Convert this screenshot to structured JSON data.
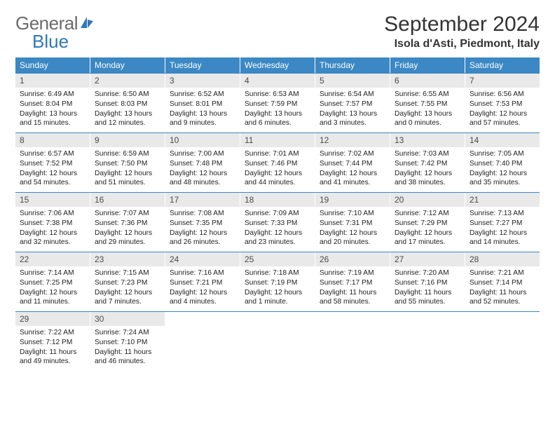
{
  "brand": {
    "part1": "General",
    "part2": "Blue"
  },
  "title": "September 2024",
  "location": "Isola d'Asti, Piedmont, Italy",
  "colors": {
    "header_bar": "#3b88c4",
    "row_divider": "#3b88c4",
    "daynum_bg": "#e9e9e9",
    "text": "#222222",
    "logo_gray": "#6b6b6b",
    "logo_blue": "#2f78b7"
  },
  "dow": [
    "Sunday",
    "Monday",
    "Tuesday",
    "Wednesday",
    "Thursday",
    "Friday",
    "Saturday"
  ],
  "weeks": [
    [
      {
        "n": "1",
        "sr": "6:49 AM",
        "ss": "8:04 PM",
        "dl": "13 hours and 15 minutes."
      },
      {
        "n": "2",
        "sr": "6:50 AM",
        "ss": "8:03 PM",
        "dl": "13 hours and 12 minutes."
      },
      {
        "n": "3",
        "sr": "6:52 AM",
        "ss": "8:01 PM",
        "dl": "13 hours and 9 minutes."
      },
      {
        "n": "4",
        "sr": "6:53 AM",
        "ss": "7:59 PM",
        "dl": "13 hours and 6 minutes."
      },
      {
        "n": "5",
        "sr": "6:54 AM",
        "ss": "7:57 PM",
        "dl": "13 hours and 3 minutes."
      },
      {
        "n": "6",
        "sr": "6:55 AM",
        "ss": "7:55 PM",
        "dl": "13 hours and 0 minutes."
      },
      {
        "n": "7",
        "sr": "6:56 AM",
        "ss": "7:53 PM",
        "dl": "12 hours and 57 minutes."
      }
    ],
    [
      {
        "n": "8",
        "sr": "6:57 AM",
        "ss": "7:52 PM",
        "dl": "12 hours and 54 minutes."
      },
      {
        "n": "9",
        "sr": "6:59 AM",
        "ss": "7:50 PM",
        "dl": "12 hours and 51 minutes."
      },
      {
        "n": "10",
        "sr": "7:00 AM",
        "ss": "7:48 PM",
        "dl": "12 hours and 48 minutes."
      },
      {
        "n": "11",
        "sr": "7:01 AM",
        "ss": "7:46 PM",
        "dl": "12 hours and 44 minutes."
      },
      {
        "n": "12",
        "sr": "7:02 AM",
        "ss": "7:44 PM",
        "dl": "12 hours and 41 minutes."
      },
      {
        "n": "13",
        "sr": "7:03 AM",
        "ss": "7:42 PM",
        "dl": "12 hours and 38 minutes."
      },
      {
        "n": "14",
        "sr": "7:05 AM",
        "ss": "7:40 PM",
        "dl": "12 hours and 35 minutes."
      }
    ],
    [
      {
        "n": "15",
        "sr": "7:06 AM",
        "ss": "7:38 PM",
        "dl": "12 hours and 32 minutes."
      },
      {
        "n": "16",
        "sr": "7:07 AM",
        "ss": "7:36 PM",
        "dl": "12 hours and 29 minutes."
      },
      {
        "n": "17",
        "sr": "7:08 AM",
        "ss": "7:35 PM",
        "dl": "12 hours and 26 minutes."
      },
      {
        "n": "18",
        "sr": "7:09 AM",
        "ss": "7:33 PM",
        "dl": "12 hours and 23 minutes."
      },
      {
        "n": "19",
        "sr": "7:10 AM",
        "ss": "7:31 PM",
        "dl": "12 hours and 20 minutes."
      },
      {
        "n": "20",
        "sr": "7:12 AM",
        "ss": "7:29 PM",
        "dl": "12 hours and 17 minutes."
      },
      {
        "n": "21",
        "sr": "7:13 AM",
        "ss": "7:27 PM",
        "dl": "12 hours and 14 minutes."
      }
    ],
    [
      {
        "n": "22",
        "sr": "7:14 AM",
        "ss": "7:25 PM",
        "dl": "12 hours and 11 minutes."
      },
      {
        "n": "23",
        "sr": "7:15 AM",
        "ss": "7:23 PM",
        "dl": "12 hours and 7 minutes."
      },
      {
        "n": "24",
        "sr": "7:16 AM",
        "ss": "7:21 PM",
        "dl": "12 hours and 4 minutes."
      },
      {
        "n": "25",
        "sr": "7:18 AM",
        "ss": "7:19 PM",
        "dl": "12 hours and 1 minute."
      },
      {
        "n": "26",
        "sr": "7:19 AM",
        "ss": "7:17 PM",
        "dl": "11 hours and 58 minutes."
      },
      {
        "n": "27",
        "sr": "7:20 AM",
        "ss": "7:16 PM",
        "dl": "11 hours and 55 minutes."
      },
      {
        "n": "28",
        "sr": "7:21 AM",
        "ss": "7:14 PM",
        "dl": "11 hours and 52 minutes."
      }
    ],
    [
      {
        "n": "29",
        "sr": "7:22 AM",
        "ss": "7:12 PM",
        "dl": "11 hours and 49 minutes."
      },
      {
        "n": "30",
        "sr": "7:24 AM",
        "ss": "7:10 PM",
        "dl": "11 hours and 46 minutes."
      },
      null,
      null,
      null,
      null,
      null
    ]
  ],
  "labels": {
    "sunrise": "Sunrise:",
    "sunset": "Sunset:",
    "daylight": "Daylight:"
  }
}
